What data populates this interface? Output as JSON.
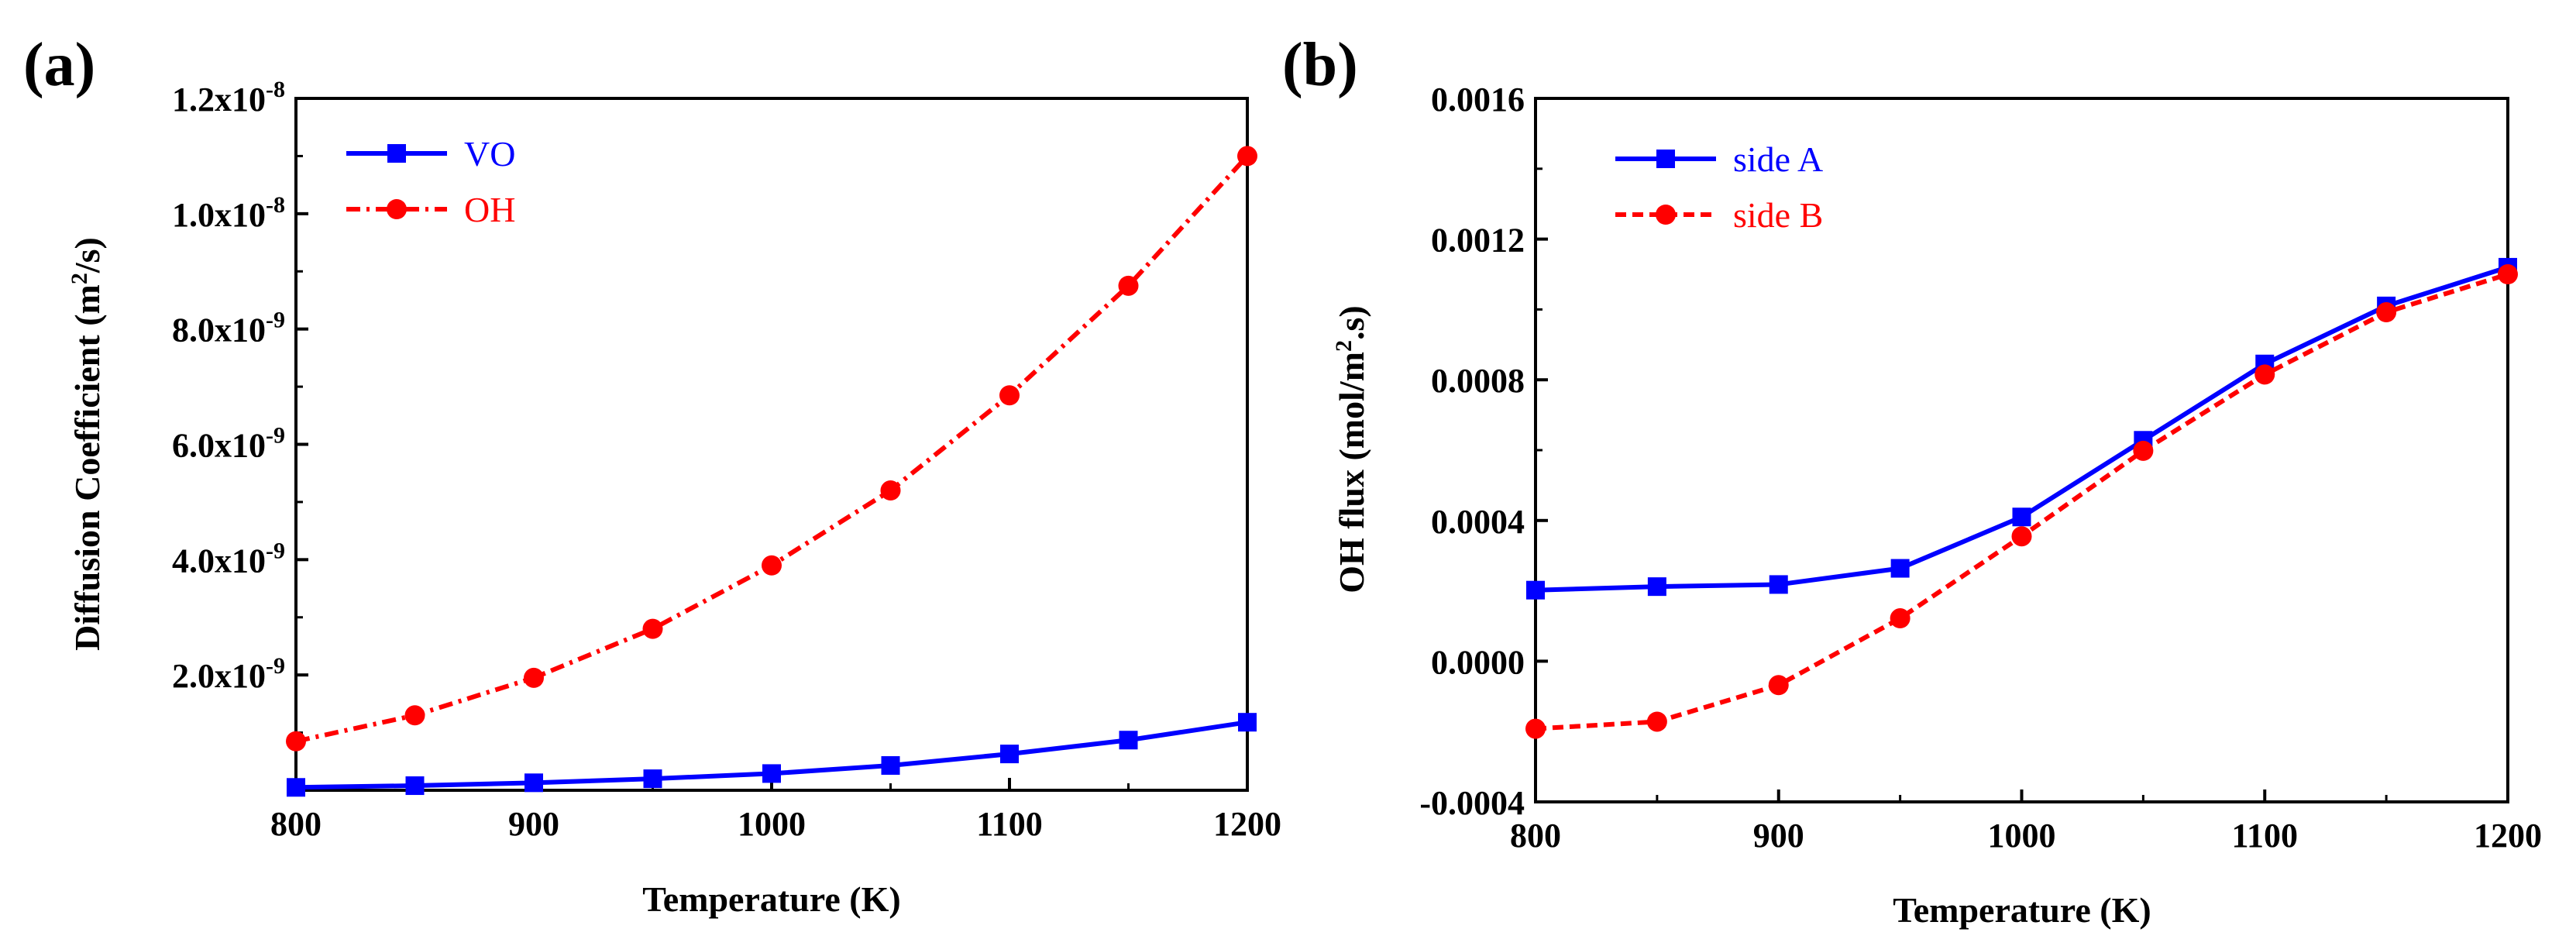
{
  "chart_data": [
    {
      "type": "line",
      "panel_label": "(a)",
      "xlabel": "Temperature (K)",
      "ylabel": "Diffusion Coefficient (m²/s)",
      "xlim": [
        800,
        1200
      ],
      "ylim": [
        0,
        1.2e-08
      ],
      "x": [
        800,
        850,
        900,
        950,
        1000,
        1050,
        1100,
        1150,
        1200
      ],
      "xticks": [
        800,
        900,
        1000,
        1100,
        1200
      ],
      "xtick_labels": [
        "800",
        "900",
        "1000",
        "1100",
        "1200"
      ],
      "yticks": [
        2e-09,
        4e-09,
        6e-09,
        8e-09,
        1e-08,
        1.2e-08
      ],
      "ytick_mantissas": [
        "2.0x10",
        "4.0x10",
        "6.0x10",
        "8.0x10",
        "1.0x10",
        "1.2x10"
      ],
      "ytick_exponents": [
        "-9",
        "-9",
        "-9",
        "-9",
        "-8",
        "-8"
      ],
      "legend_position": "top-left",
      "series": [
        {
          "name": "VO",
          "color": "#0000ff",
          "marker": "square",
          "line": "solid",
          "values": [
            5e-11,
            8e-11,
            1.3e-10,
            2e-10,
            2.9e-10,
            4.3e-10,
            6.3e-10,
            8.7e-10,
            1.18e-09
          ]
        },
        {
          "name": "OH",
          "color": "#ff0000",
          "marker": "circle",
          "line": "dashdot",
          "values": [
            8.5e-10,
            1.3e-09,
            1.95e-09,
            2.8e-09,
            3.9e-09,
            5.2e-09,
            6.85e-09,
            8.75e-09,
            1.1e-08
          ]
        }
      ]
    },
    {
      "type": "line",
      "panel_label": "(b)",
      "xlabel": "Temperature (K)",
      "ylabel": "OH flux (mol/m².s)",
      "xlim": [
        800,
        1200
      ],
      "ylim": [
        -0.0004,
        0.0016
      ],
      "x": [
        800,
        850,
        900,
        950,
        1000,
        1050,
        1100,
        1150,
        1200
      ],
      "xticks": [
        800,
        900,
        1000,
        1100,
        1200
      ],
      "xtick_labels": [
        "800",
        "900",
        "1000",
        "1100",
        "1200"
      ],
      "yticks": [
        -0.0004,
        0.0,
        0.0004,
        0.0008,
        0.0012,
        0.0016
      ],
      "ytick_labels": [
        "-0.0004",
        "0.0000",
        "0.0004",
        "0.0008",
        "0.0012",
        "0.0016"
      ],
      "legend_position": "top-left",
      "series": [
        {
          "name": "side A",
          "color": "#0000ff",
          "marker": "square",
          "line": "solid",
          "values": [
            0.000202,
            0.000212,
            0.000218,
            0.000264,
            0.00041,
            0.000628,
            0.000845,
            0.00101,
            0.00112
          ]
        },
        {
          "name": "side B",
          "color": "#ff0000",
          "marker": "circle",
          "line": "dashed",
          "values": [
            -0.000192,
            -0.000172,
            -6.8e-05,
            0.000122,
            0.000355,
            0.000598,
            0.000815,
            0.000992,
            0.0011
          ]
        }
      ]
    }
  ]
}
